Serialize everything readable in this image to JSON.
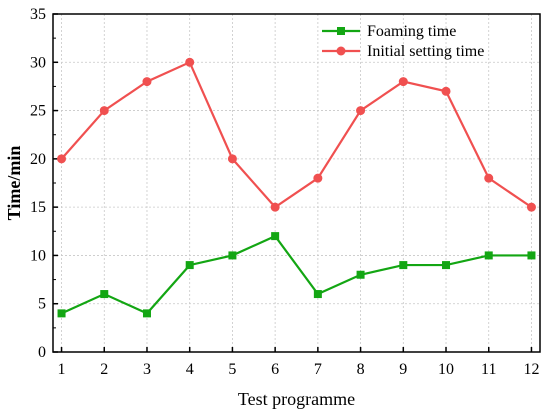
{
  "chart_data": {
    "type": "line",
    "title": "",
    "xlabel": "Test programme",
    "ylabel": "Time/min",
    "x": [
      1,
      2,
      3,
      4,
      5,
      6,
      7,
      8,
      9,
      10,
      11,
      12
    ],
    "xlim": [
      0.8,
      12.2
    ],
    "ylim": [
      0,
      35
    ],
    "yticks": [
      0,
      5,
      10,
      15,
      20,
      25,
      30,
      35
    ],
    "grid": true,
    "legend_position": "top-right",
    "series": [
      {
        "name": "Foaming time",
        "color": "#13a613",
        "marker": "square",
        "values": [
          4,
          6,
          4,
          9,
          10,
          12,
          6,
          8,
          9,
          9,
          10,
          10
        ]
      },
      {
        "name": "Initial setting time",
        "color": "#f05050",
        "marker": "circle",
        "values": [
          20,
          25,
          28,
          30,
          20,
          15,
          18,
          25,
          28,
          27,
          18,
          15
        ]
      }
    ]
  }
}
